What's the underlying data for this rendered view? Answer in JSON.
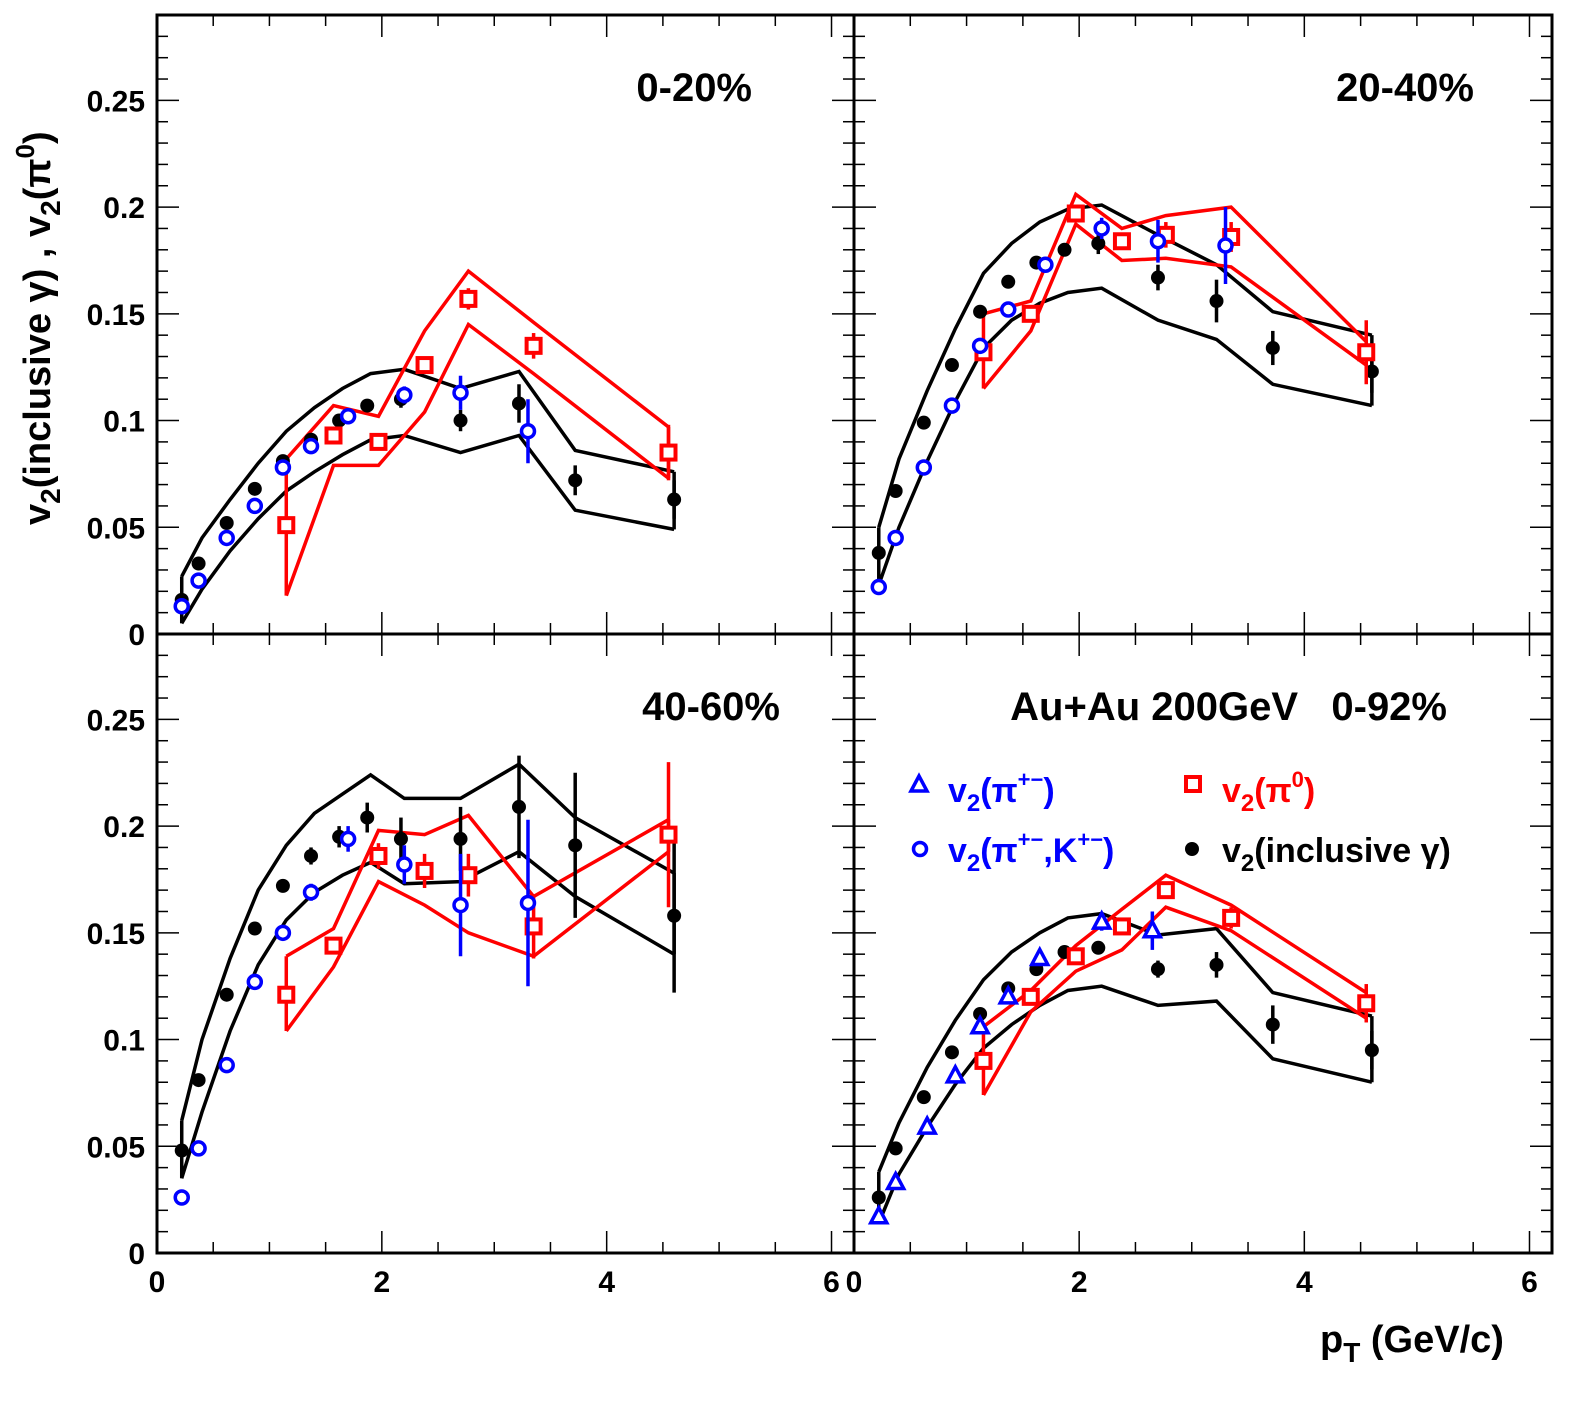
{
  "axes": {
    "x_tick_labels": [
      "0",
      "2",
      "4",
      "6"
    ],
    "y_tick_labels": [
      "0",
      "0.05",
      "0.1",
      "0.15",
      "0.2",
      "0.25"
    ],
    "x_title": "p_T (GeV/c)",
    "y_title": "v2(inclusive γ) ,   v2(π0)"
  },
  "legend": {
    "header": "Au+Au 200GeV   0-92%",
    "items": [
      {
        "label": "v2(π+−)",
        "marker": "open-triangle",
        "color": "#0000ff"
      },
      {
        "label": "v2(π0)",
        "marker": "open-square",
        "color": "#ff0000"
      },
      {
        "label": "v2(π+−,K+−)",
        "marker": "open-circle",
        "color": "#0000ff"
      },
      {
        "label": "v2(inclusive γ)",
        "marker": "filled-circle",
        "color": "#000000"
      }
    ]
  },
  "colors": {
    "blue": "#0000ff",
    "red": "#ff0000",
    "black": "#000000"
  },
  "chart_data": [
    {
      "type": "scatter",
      "title": "0-20%",
      "xlim": [
        0,
        6.2
      ],
      "ylim": [
        0,
        0.29
      ],
      "gamma": {
        "x": [
          0.22,
          0.37,
          0.62,
          0.87,
          1.12,
          1.37,
          1.62,
          1.87,
          2.17,
          2.7,
          3.22,
          3.72,
          4.6
        ],
        "y": [
          0.016,
          0.033,
          0.052,
          0.068,
          0.081,
          0.091,
          0.1,
          0.107,
          0.11,
          0.1,
          0.108,
          0.072,
          0.063
        ],
        "err": [
          0.002,
          0.002,
          0.002,
          0.002,
          0.002,
          0.003,
          0.003,
          0.003,
          0.004,
          0.005,
          0.009,
          0.007,
          0.009
        ]
      },
      "pi0": {
        "x": [
          1.15,
          1.57,
          1.97,
          2.38,
          2.77,
          3.35,
          4.55
        ],
        "y": [
          0.051,
          0.093,
          0.09,
          0.126,
          0.157,
          0.135,
          0.085
        ],
        "err": [
          0.002,
          0.003,
          0.004,
          0.004,
          0.005,
          0.006,
          0.013
        ]
      },
      "pik": {
        "x": [
          0.22,
          0.37,
          0.62,
          0.87,
          1.12,
          1.37,
          1.7,
          2.2,
          2.7,
          3.3
        ],
        "y": [
          0.013,
          0.025,
          0.045,
          0.06,
          0.078,
          0.088,
          0.102,
          0.112,
          0.113,
          0.095
        ],
        "err": [
          0.001,
          0.001,
          0.001,
          0.001,
          0.001,
          0.002,
          0.002,
          0.004,
          0.008,
          0.015
        ]
      },
      "band_black": {
        "x": [
          0.22,
          0.4,
          0.65,
          0.9,
          1.15,
          1.4,
          1.65,
          1.9,
          2.2,
          2.7,
          3.22,
          3.72,
          4.6
        ],
        "upper": [
          0.027,
          0.045,
          0.063,
          0.08,
          0.095,
          0.106,
          0.115,
          0.122,
          0.124,
          0.115,
          0.123,
          0.086,
          0.076
        ],
        "lower": [
          0.005,
          0.021,
          0.039,
          0.054,
          0.067,
          0.076,
          0.084,
          0.091,
          0.093,
          0.085,
          0.093,
          0.058,
          0.049
        ]
      },
      "band_red": {
        "x": [
          1.15,
          1.57,
          1.97,
          2.38,
          2.77,
          3.35,
          4.55
        ],
        "upper": [
          0.082,
          0.107,
          0.102,
          0.142,
          0.17,
          0.146,
          0.097
        ],
        "lower": [
          0.018,
          0.079,
          0.079,
          0.104,
          0.145,
          0.122,
          0.073
        ]
      }
    },
    {
      "type": "scatter",
      "title": "20-40%",
      "xlim": [
        0,
        6.2
      ],
      "ylim": [
        0,
        0.29
      ],
      "gamma": {
        "x": [
          0.22,
          0.37,
          0.62,
          0.87,
          1.12,
          1.37,
          1.62,
          1.87,
          2.17,
          2.7,
          3.22,
          3.72,
          4.6
        ],
        "y": [
          0.038,
          0.067,
          0.099,
          0.126,
          0.151,
          0.165,
          0.174,
          0.18,
          0.183,
          0.167,
          0.156,
          0.134,
          0.123
        ],
        "err": [
          0.002,
          0.002,
          0.002,
          0.002,
          0.002,
          0.003,
          0.003,
          0.003,
          0.005,
          0.006,
          0.01,
          0.008,
          0.01
        ]
      },
      "pi0": {
        "x": [
          1.15,
          1.57,
          1.97,
          2.38,
          2.77,
          3.35,
          4.55
        ],
        "y": [
          0.132,
          0.15,
          0.197,
          0.184,
          0.187,
          0.186,
          0.132
        ],
        "err": [
          0.002,
          0.003,
          0.004,
          0.004,
          0.006,
          0.007,
          0.015
        ]
      },
      "pik": {
        "x": [
          0.22,
          0.37,
          0.62,
          0.87,
          1.12,
          1.37,
          1.7,
          2.2,
          2.7,
          3.3
        ],
        "y": [
          0.022,
          0.045,
          0.078,
          0.107,
          0.135,
          0.152,
          0.173,
          0.19,
          0.184,
          0.182
        ],
        "err": [
          0.001,
          0.001,
          0.001,
          0.001,
          0.002,
          0.002,
          0.003,
          0.005,
          0.01,
          0.018
        ]
      },
      "band_black": {
        "x": [
          0.22,
          0.4,
          0.65,
          0.9,
          1.15,
          1.4,
          1.65,
          1.9,
          2.2,
          2.7,
          3.22,
          3.72,
          4.6
        ],
        "upper": [
          0.05,
          0.082,
          0.114,
          0.143,
          0.169,
          0.183,
          0.193,
          0.199,
          0.201,
          0.187,
          0.173,
          0.151,
          0.14
        ],
        "lower": [
          0.023,
          0.05,
          0.081,
          0.109,
          0.134,
          0.147,
          0.155,
          0.16,
          0.162,
          0.147,
          0.138,
          0.117,
          0.107
        ]
      },
      "band_red": {
        "x": [
          1.15,
          1.57,
          1.97,
          2.38,
          2.77,
          3.35,
          4.55
        ],
        "upper": [
          0.15,
          0.156,
          0.206,
          0.19,
          0.196,
          0.2,
          0.137
        ],
        "lower": [
          0.115,
          0.142,
          0.192,
          0.175,
          0.176,
          0.172,
          0.126
        ]
      }
    },
    {
      "type": "scatter",
      "title": "40-60%",
      "xlim": [
        0,
        6.2
      ],
      "ylim": [
        0,
        0.29
      ],
      "gamma": {
        "x": [
          0.22,
          0.37,
          0.62,
          0.87,
          1.12,
          1.37,
          1.62,
          1.87,
          2.17,
          2.7,
          3.22,
          3.72,
          4.6
        ],
        "y": [
          0.048,
          0.081,
          0.121,
          0.152,
          0.172,
          0.186,
          0.195,
          0.204,
          0.194,
          0.194,
          0.209,
          0.191,
          0.158
        ],
        "err": [
          0.002,
          0.002,
          0.002,
          0.003,
          0.003,
          0.004,
          0.005,
          0.007,
          0.01,
          0.015,
          0.024,
          0.034,
          0.036
        ]
      },
      "pi0": {
        "x": [
          1.15,
          1.57,
          1.97,
          2.38,
          2.77,
          3.35,
          4.55
        ],
        "y": [
          0.121,
          0.144,
          0.186,
          0.179,
          0.177,
          0.153,
          0.196
        ],
        "err": [
          0.002,
          0.004,
          0.006,
          0.008,
          0.01,
          0.015,
          0.034
        ]
      },
      "pik": {
        "x": [
          0.22,
          0.37,
          0.62,
          0.87,
          1.12,
          1.37,
          1.7,
          2.2,
          2.7,
          3.3
        ],
        "y": [
          0.026,
          0.049,
          0.088,
          0.127,
          0.15,
          0.169,
          0.194,
          0.182,
          0.163,
          0.164
        ],
        "err": [
          0.001,
          0.001,
          0.002,
          0.002,
          0.003,
          0.004,
          0.006,
          0.009,
          0.024,
          0.039
        ]
      },
      "band_black": {
        "x": [
          0.22,
          0.4,
          0.65,
          0.9,
          1.15,
          1.4,
          1.65,
          1.9,
          2.2,
          2.7,
          3.22,
          3.72,
          4.6
        ],
        "upper": [
          0.062,
          0.1,
          0.138,
          0.17,
          0.191,
          0.206,
          0.215,
          0.224,
          0.213,
          0.213,
          0.229,
          0.204,
          0.178
        ],
        "lower": [
          0.035,
          0.066,
          0.104,
          0.135,
          0.156,
          0.169,
          0.177,
          0.183,
          0.173,
          0.174,
          0.188,
          0.167,
          0.14
        ]
      },
      "band_red": {
        "x": [
          1.15,
          1.57,
          1.97,
          2.38,
          2.77,
          3.35,
          4.55
        ],
        "upper": [
          0.139,
          0.152,
          0.198,
          0.196,
          0.205,
          0.167,
          0.203
        ],
        "lower": [
          0.104,
          0.134,
          0.174,
          0.163,
          0.15,
          0.139,
          0.188
        ]
      }
    },
    {
      "type": "scatter",
      "title": "Au+Au 200GeV   0-92%",
      "xlim": [
        0,
        6.2
      ],
      "ylim": [
        0,
        0.29
      ],
      "gamma": {
        "x": [
          0.22,
          0.37,
          0.62,
          0.87,
          1.12,
          1.37,
          1.62,
          1.87,
          2.17,
          2.7,
          3.22,
          3.72,
          4.6
        ],
        "y": [
          0.026,
          0.049,
          0.073,
          0.094,
          0.112,
          0.124,
          0.133,
          0.141,
          0.143,
          0.133,
          0.135,
          0.107,
          0.095
        ],
        "err": [
          0.001,
          0.001,
          0.001,
          0.001,
          0.002,
          0.002,
          0.002,
          0.003,
          0.003,
          0.004,
          0.006,
          0.009,
          0.009
        ]
      },
      "pi0": {
        "x": [
          1.15,
          1.57,
          1.97,
          2.38,
          2.77,
          3.35,
          4.55
        ],
        "y": [
          0.09,
          0.12,
          0.139,
          0.153,
          0.17,
          0.157,
          0.117
        ],
        "err": [
          0.002,
          0.002,
          0.003,
          0.004,
          0.004,
          0.005,
          0.009
        ]
      },
      "pipm": {
        "x": [
          0.22,
          0.37,
          0.65,
          0.9,
          1.12,
          1.37,
          1.65,
          2.2,
          2.65
        ],
        "y": [
          0.017,
          0.033,
          0.059,
          0.083,
          0.106,
          0.12,
          0.138,
          0.155,
          0.151
        ],
        "err": [
          0.001,
          0.001,
          0.001,
          0.001,
          0.002,
          0.002,
          0.003,
          0.004,
          0.009
        ]
      },
      "band_black": {
        "x": [
          0.22,
          0.4,
          0.65,
          0.9,
          1.15,
          1.4,
          1.65,
          1.9,
          2.2,
          2.7,
          3.22,
          3.72,
          4.6
        ],
        "upper": [
          0.038,
          0.061,
          0.087,
          0.109,
          0.128,
          0.141,
          0.15,
          0.157,
          0.159,
          0.149,
          0.152,
          0.122,
          0.111
        ],
        "lower": [
          0.014,
          0.037,
          0.059,
          0.079,
          0.096,
          0.107,
          0.116,
          0.123,
          0.125,
          0.116,
          0.118,
          0.091,
          0.08
        ]
      },
      "band_red": {
        "x": [
          1.15,
          1.57,
          1.97,
          2.38,
          2.77,
          3.35,
          4.55
        ],
        "upper": [
          0.106,
          0.123,
          0.144,
          0.161,
          0.177,
          0.163,
          0.122
        ],
        "lower": [
          0.074,
          0.113,
          0.132,
          0.142,
          0.162,
          0.151,
          0.11
        ]
      }
    }
  ]
}
